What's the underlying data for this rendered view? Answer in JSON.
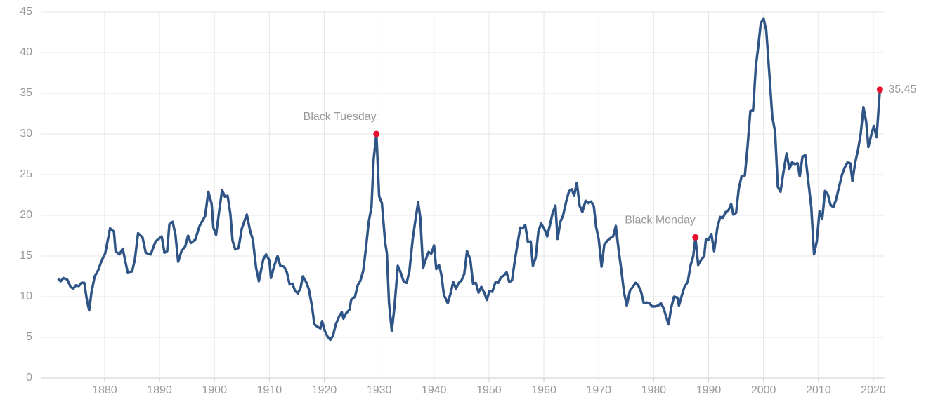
{
  "chart_data": {
    "type": "line",
    "color": "#2f5486",
    "grid": true,
    "xlim": [
      1868.5,
      2022
    ],
    "xticks": [
      1880,
      1890,
      1900,
      1910,
      1920,
      1930,
      1940,
      1950,
      1960,
      1970,
      1980,
      1990,
      2000,
      2010,
      2020
    ],
    "ylim": [
      0,
      45
    ],
    "yticks": [
      0,
      5,
      10,
      15,
      20,
      25,
      30,
      35,
      40,
      45
    ],
    "x": [
      1871.5,
      1872,
      1872.5,
      1873.2,
      1873.8,
      1874.3,
      1874.8,
      1875.3,
      1875.8,
      1876.3,
      1876.8,
      1877.2,
      1877.6,
      1878.2,
      1878.8,
      1879.5,
      1880.1,
      1881,
      1881.7,
      1882,
      1882.7,
      1883.3,
      1884.2,
      1885,
      1885.5,
      1886.1,
      1886.9,
      1887.5,
      1888.4,
      1889.3,
      1890.4,
      1890.9,
      1891.4,
      1891.8,
      1892.4,
      1892.9,
      1893.4,
      1894,
      1894.7,
      1895.2,
      1895.7,
      1896.5,
      1897.3,
      1898.3,
      1898.9,
      1899.5,
      1899.8,
      1900.3,
      1900.9,
      1901.4,
      1901.9,
      1902.4,
      1902.9,
      1903.3,
      1903.8,
      1904.4,
      1905,
      1905.9,
      1906.5,
      1907,
      1907.6,
      1908.1,
      1908.9,
      1909.4,
      1910,
      1910.3,
      1910.9,
      1911.5,
      1912,
      1912.7,
      1913.2,
      1913.7,
      1914.2,
      1914.7,
      1915.2,
      1915.7,
      1916.1,
      1916.7,
      1917.2,
      1917.8,
      1918.2,
      1918.8,
      1919.3,
      1919.6,
      1920.1,
      1920.6,
      1921.1,
      1921.6,
      1922.1,
      1922.8,
      1923.2,
      1923.5,
      1924,
      1924.6,
      1924.9,
      1925.6,
      1926.1,
      1926.6,
      1927.1,
      1927.6,
      1928.1,
      1928.6,
      1929,
      1929.5,
      1930,
      1930.5,
      1931.1,
      1931.4,
      1931.8,
      1932.3,
      1932.8,
      1933.4,
      1933.9,
      1934.5,
      1935,
      1935.5,
      1936.1,
      1936.6,
      1937.1,
      1937.5,
      1938,
      1938.5,
      1939,
      1939.5,
      1940,
      1940.4,
      1940.9,
      1941.3,
      1941.8,
      1942.5,
      1943,
      1943.5,
      1944,
      1944.5,
      1945,
      1945.5,
      1946,
      1946.6,
      1947.1,
      1947.6,
      1948.1,
      1948.6,
      1949.2,
      1949.6,
      1950.1,
      1950.6,
      1951.2,
      1951.7,
      1952.2,
      1952.7,
      1953.2,
      1953.7,
      1954.2,
      1954.7,
      1955.2,
      1955.7,
      1956.1,
      1956.6,
      1957.1,
      1957.6,
      1958,
      1958.5,
      1959,
      1959.5,
      1960.1,
      1960.6,
      1961.1,
      1961.6,
      1962.1,
      1962.5,
      1963,
      1963.5,
      1964.1,
      1964.6,
      1965.1,
      1965.5,
      1966,
      1966.5,
      1967,
      1967.6,
      1968.1,
      1968.6,
      1969.1,
      1969.5,
      1970,
      1970.5,
      1971,
      1971.6,
      1972.1,
      1972.6,
      1973.1,
      1973.6,
      1974.1,
      1974.6,
      1975.1,
      1975.7,
      1976.2,
      1976.7,
      1977.2,
      1977.7,
      1978.2,
      1978.7,
      1979.2,
      1979.7,
      1980.2,
      1980.8,
      1981.3,
      1981.8,
      1982.2,
      1982.7,
      1983.2,
      1983.7,
      1984.3,
      1984.6,
      1985.1,
      1985.6,
      1986.2,
      1986.7,
      1987.2,
      1987.6,
      1988.1,
      1988.6,
      1989.2,
      1989.5,
      1990,
      1990.5,
      1991,
      1991.6,
      1992.1,
      1992.6,
      1993.1,
      1993.6,
      1994.1,
      1994.5,
      1995,
      1995.5,
      1996,
      1996.6,
      1997.1,
      1997.6,
      1998.1,
      1998.6,
      1999,
      1999.5,
      2000,
      2000.5,
      2001.1,
      2001.6,
      2002.1,
      2002.6,
      2003.1,
      2003.6,
      2004.2,
      2004.7,
      2005.2,
      2005.7,
      2006.2,
      2006.6,
      2007.1,
      2007.6,
      2008.1,
      2008.7,
      2009.2,
      2009.7,
      2010.2,
      2010.7,
      2011.2,
      2011.7,
      2012.2,
      2012.7,
      2013.2,
      2013.8,
      2014.3,
      2014.8,
      2015.3,
      2015.8,
      2016.2,
      2016.7,
      2017.2,
      2017.7,
      2018.2,
      2018.7,
      2019.1,
      2019.6,
      2020.1,
      2020.6,
      2021.2
    ],
    "values": [
      12.2,
      11.9,
      12.3,
      12.1,
      11.2,
      11.0,
      11.4,
      11.3,
      11.7,
      11.7,
      9.5,
      8.3,
      10.5,
      12.5,
      13.2,
      14.5,
      15.3,
      18.4,
      18.0,
      15.6,
      15.2,
      15.9,
      13.0,
      13.1,
      14.5,
      17.8,
      17.3,
      15.4,
      15.2,
      16.8,
      17.4,
      15.4,
      15.6,
      18.9,
      19.2,
      17.6,
      14.3,
      15.6,
      16.2,
      17.5,
      16.6,
      17.0,
      18.7,
      19.9,
      22.9,
      21.4,
      18.5,
      17.6,
      20.7,
      23.1,
      22.3,
      22.4,
      20.2,
      16.9,
      15.8,
      16.0,
      18.4,
      20.1,
      18.1,
      17.0,
      13.5,
      11.9,
      14.6,
      15.2,
      14.5,
      12.3,
      13.8,
      15.0,
      13.8,
      13.7,
      13.0,
      11.5,
      11.6,
      10.7,
      10.4,
      11.1,
      12.5,
      11.8,
      10.9,
      8.7,
      6.6,
      6.3,
      6.1,
      7.0,
      5.8,
      5.1,
      4.7,
      5.2,
      6.6,
      7.7,
      8.1,
      7.3,
      8.0,
      8.4,
      9.6,
      10.0,
      11.4,
      12.0,
      13.2,
      16.0,
      19.2,
      21.0,
      26.9,
      30.0,
      22.3,
      21.5,
      16.6,
      15.4,
      9.2,
      5.8,
      8.8,
      13.8,
      13.0,
      11.8,
      11.7,
      13.1,
      17.0,
      19.4,
      21.6,
      19.7,
      13.5,
      14.6,
      15.5,
      15.3,
      16.3,
      13.4,
      13.9,
      12.8,
      10.2,
      9.2,
      10.4,
      11.8,
      11.0,
      11.7,
      12.0,
      12.8,
      15.6,
      14.6,
      11.6,
      11.7,
      10.5,
      11.2,
      10.4,
      9.6,
      10.7,
      10.6,
      11.8,
      11.7,
      12.4,
      12.6,
      13.0,
      11.8,
      12.0,
      14.4,
      16.5,
      18.5,
      18.4,
      18.8,
      16.7,
      16.8,
      13.8,
      14.8,
      18.0,
      19.0,
      18.3,
      17.4,
      18.8,
      20.3,
      21.2,
      17.1,
      19.2,
      20.0,
      21.8,
      23.0,
      23.2,
      22.4,
      24.0,
      21.2,
      20.4,
      21.8,
      21.5,
      21.7,
      21.1,
      18.6,
      17.0,
      13.7,
      16.4,
      16.9,
      17.2,
      17.4,
      18.7,
      15.8,
      13.3,
      10.5,
      8.9,
      10.8,
      11.2,
      11.7,
      11.4,
      10.6,
      9.2,
      9.3,
      9.2,
      8.8,
      8.8,
      8.9,
      9.2,
      8.6,
      7.7,
      6.6,
      8.7,
      10.0,
      9.9,
      8.9,
      10.1,
      11.2,
      11.8,
      13.8,
      15.0,
      17.3,
      13.9,
      14.5,
      15.0,
      17.0,
      17.0,
      17.7,
      15.6,
      18.5,
      19.8,
      19.7,
      20.4,
      20.6,
      21.4,
      20.1,
      20.3,
      23.3,
      24.8,
      24.9,
      28.5,
      32.8,
      32.9,
      38.3,
      40.5,
      43.6,
      44.2,
      42.7,
      37.0,
      32.1,
      30.3,
      23.5,
      22.9,
      25.2,
      27.6,
      25.7,
      26.5,
      26.3,
      26.4,
      24.8,
      27.2,
      27.4,
      24.5,
      21.0,
      15.2,
      16.8,
      20.5,
      19.6,
      23.0,
      22.6,
      21.3,
      21.0,
      21.9,
      23.6,
      25.0,
      25.9,
      26.5,
      26.4,
      24.2,
      26.5,
      28.0,
      30.0,
      33.3,
      31.5,
      28.4,
      29.8,
      31.0,
      29.6,
      35.45
    ],
    "annotations": [
      {
        "label": "Black Tuesday",
        "x": 1929.5,
        "y": 30.0,
        "color": "#e8112d"
      },
      {
        "label": "Black Monday",
        "x": 1987.6,
        "y": 17.3,
        "color": "#e8112d"
      },
      {
        "label": "35.45",
        "x": 2021.2,
        "y": 35.45,
        "color": "#e8112d"
      }
    ]
  }
}
